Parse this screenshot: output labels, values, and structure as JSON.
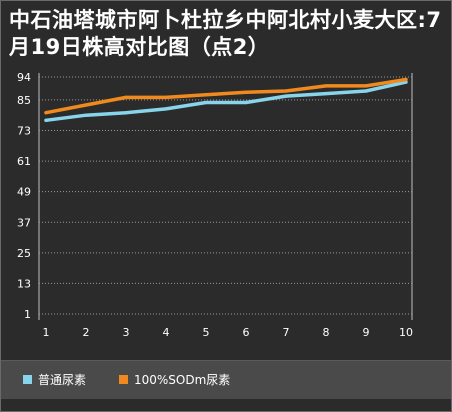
{
  "colors": {
    "background": "#2b2b2b",
    "legend_background": "#4a4a4a",
    "series_1": "#88d4ea",
    "series_2": "#f08a1e",
    "text": "#ffffff",
    "grid": "#9a9a9a"
  },
  "chart_data": {
    "type": "line",
    "title": "中石油塔城市阿卜杜拉乡中阿北村小麦大区:7月19日株高对比图（点2）",
    "xlabel": "",
    "ylabel": "",
    "x": [
      1,
      2,
      3,
      4,
      5,
      6,
      7,
      8,
      9,
      10
    ],
    "x_tick_labels": [
      "1",
      "2",
      "3",
      "4",
      "5",
      "6",
      "7",
      "8",
      "9",
      "10"
    ],
    "y_ticks": [
      1,
      13,
      25,
      37,
      49,
      61,
      73,
      85,
      94
    ],
    "y_tick_labels": [
      "1",
      "13",
      "25",
      "37",
      "49",
      "61",
      "73",
      "85",
      "94"
    ],
    "ylim": [
      1,
      94
    ],
    "grid": "horizontal dotted",
    "legend_position": "bottom",
    "series": [
      {
        "name": "普通尿素",
        "color": "#88d4ea",
        "values": [
          77,
          79,
          80,
          81.5,
          84,
          84,
          86.5,
          87.5,
          88.5,
          92
        ]
      },
      {
        "name": "100%SODm尿素",
        "color": "#f08a1e",
        "values": [
          80,
          83,
          86,
          86,
          87,
          88,
          88.5,
          90.5,
          90.5,
          93
        ]
      }
    ]
  }
}
